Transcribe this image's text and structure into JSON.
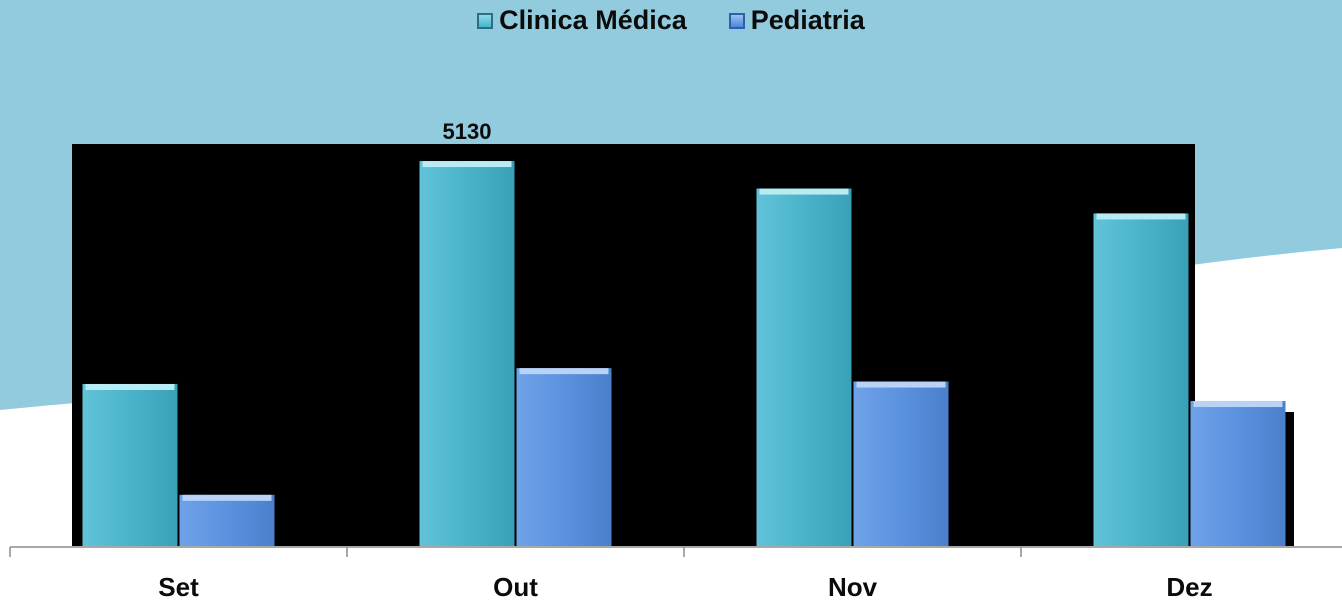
{
  "legend": {
    "series0": "Clinica Médica",
    "series1": "Pediatria"
  },
  "chart_data": {
    "type": "bar",
    "categories": [
      "Set",
      "Out",
      "Nov",
      "Dez"
    ],
    "series": [
      {
        "name": "Clinica Médica",
        "values": [
          3300,
          5130,
          4904,
          4700
        ]
      },
      {
        "name": "Pediatria",
        "values": [
          2390,
          3430,
          3320,
          3160
        ]
      }
    ],
    "data_labels": [
      "",
      "5130",
      "",
      ""
    ],
    "ylim": [
      1970,
      5270
    ],
    "colors": {
      "series0": "#4ab3ca",
      "series1": "#5b92df",
      "background_wave": "#92cbde",
      "plot_area": "#000000"
    }
  }
}
